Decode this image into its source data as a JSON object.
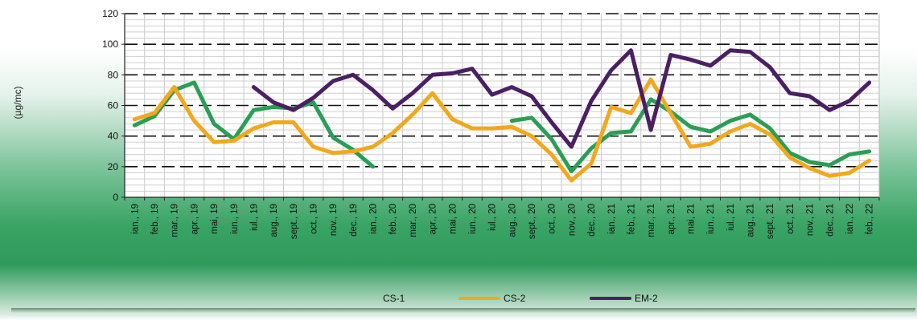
{
  "chart_data": {
    "type": "line",
    "title": "",
    "ylabel": "(µg/mc)",
    "xlabel": "",
    "ylim": [
      0,
      120
    ],
    "y_ticks": [
      0,
      20,
      40,
      60,
      80,
      100,
      120
    ],
    "grid": true,
    "legend_position": "bottom",
    "categories": [
      "ian., 19",
      "feb., 19",
      "mar., 19",
      "apr., 19",
      "mai, 19",
      "iun., 19",
      "iul., 19",
      "aug., 19",
      "sept., 19",
      "oct., 19",
      "nov., 19",
      "dec., 19",
      "ian., 20",
      "feb., 20",
      "mar., 20",
      "apr., 20",
      "mai, 20",
      "iun., 20",
      "iul., 20",
      "aug., 20",
      "sept., 20",
      "oct., 20",
      "nov., 20",
      "dec., 20",
      "ian., 21",
      "feb., 21",
      "mar., 21",
      "apr., 21",
      "mai, 21",
      "iun., 21",
      "iul., 21",
      "aug., 21",
      "sept., 21",
      "oct., 21",
      "nov., 21",
      "dec., 21",
      "ian., 22",
      "feb., 22"
    ],
    "series": [
      {
        "name": "CS-1",
        "color": "#2a9e55",
        "values": [
          47,
          53,
          70,
          75,
          48,
          38,
          57,
          59,
          58,
          62,
          39,
          31,
          20,
          null,
          null,
          null,
          null,
          null,
          null,
          50,
          52,
          38,
          17,
          32,
          42,
          43,
          64,
          56,
          46,
          43,
          50,
          54,
          45,
          29,
          23,
          21,
          28,
          30
        ]
      },
      {
        "name": "CS-2",
        "color": "#f2a81c",
        "values": [
          51,
          55,
          72,
          50,
          36,
          37,
          45,
          49,
          49,
          33,
          29,
          30,
          33,
          42,
          54,
          68,
          51,
          45,
          45,
          46,
          40,
          28,
          11,
          22,
          59,
          55,
          77,
          55,
          33,
          35,
          43,
          48,
          41,
          26,
          19,
          14,
          16,
          24
        ]
      },
      {
        "name": "EM-2",
        "color": "#4b1f63",
        "values": [
          null,
          null,
          null,
          null,
          null,
          null,
          72,
          62,
          57,
          65,
          76,
          80,
          70,
          58,
          68,
          80,
          81,
          84,
          67,
          72,
          66,
          49,
          33,
          63,
          83,
          96,
          44,
          93,
          90,
          86,
          96,
          95,
          85,
          68,
          66,
          57,
          63,
          75
        ]
      }
    ]
  }
}
